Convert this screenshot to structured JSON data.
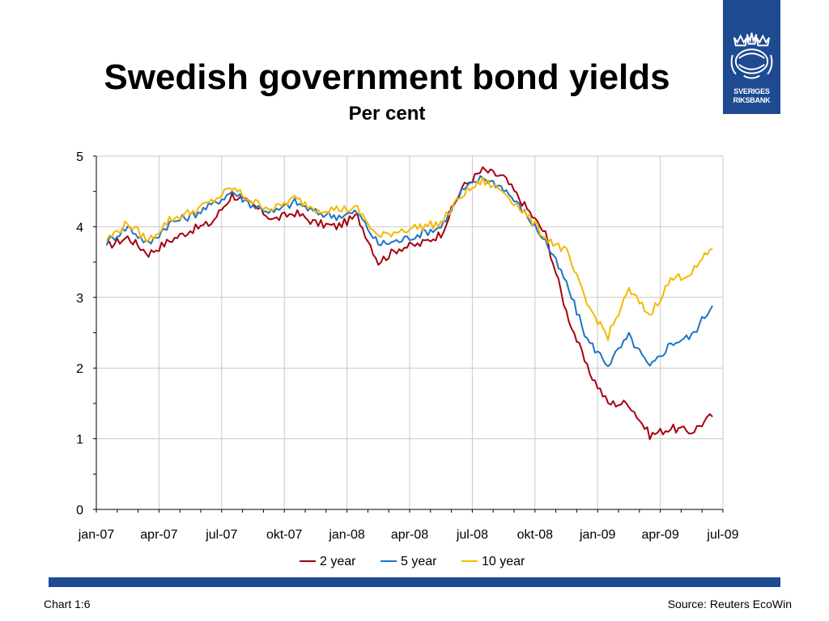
{
  "header": {
    "title": "Swedish government bond yields",
    "subtitle": "Per cent"
  },
  "logo": {
    "line1": "SVERIGES",
    "line2": "RIKSBANK",
    "color": "#1e4a92"
  },
  "footer": {
    "chart_number": "Chart 1:6",
    "source": "Source: Reuters EcoWin"
  },
  "chart_data": {
    "type": "line",
    "title": "Swedish government bond yields",
    "subtitle": "Per cent",
    "x_tick_labels": [
      "jan-07",
      "apr-07",
      "jul-07",
      "okt-07",
      "jan-08",
      "apr-08",
      "jul-08",
      "okt-08",
      "jan-09",
      "apr-09",
      "jul-09"
    ],
    "x": [
      "2007-01",
      "2007-02",
      "2007-03",
      "2007-04",
      "2007-05",
      "2007-06",
      "2007-07",
      "2007-08",
      "2007-09",
      "2007-10",
      "2007-11",
      "2007-12",
      "2008-01",
      "2008-02",
      "2008-03",
      "2008-04",
      "2008-05",
      "2008-06",
      "2008-07",
      "2008-08",
      "2008-09",
      "2008-10",
      "2008-11",
      "2008-12",
      "2009-01",
      "2009-02",
      "2009-03",
      "2009-04",
      "2009-05",
      "2009-06"
    ],
    "ylim": [
      0,
      5
    ],
    "y_ticks": [
      0,
      1,
      2,
      3,
      4,
      5
    ],
    "grid": true,
    "legend_position": "bottom",
    "series": [
      {
        "name": "2 year",
        "color": "#a5000f",
        "values": [
          3.72,
          3.85,
          3.62,
          3.8,
          3.95,
          4.05,
          4.45,
          4.3,
          4.1,
          4.2,
          4.05,
          4.0,
          4.15,
          3.5,
          3.7,
          3.75,
          3.9,
          4.55,
          4.8,
          4.7,
          4.3,
          3.9,
          2.8,
          2.0,
          1.5,
          1.5,
          1.05,
          1.15,
          1.1,
          1.33
        ]
      },
      {
        "name": "5 year",
        "color": "#1c74c4",
        "values": [
          3.78,
          4.0,
          3.75,
          4.05,
          4.15,
          4.3,
          4.5,
          4.3,
          4.2,
          4.35,
          4.2,
          4.15,
          4.2,
          3.75,
          3.8,
          3.9,
          4.0,
          4.5,
          4.7,
          4.55,
          4.2,
          3.8,
          3.2,
          2.4,
          2.05,
          2.45,
          2.0,
          2.35,
          2.45,
          2.9
        ]
      },
      {
        "name": "10 year",
        "color": "#f5b800",
        "values": [
          3.82,
          4.05,
          3.8,
          4.1,
          4.2,
          4.35,
          4.55,
          4.35,
          4.25,
          4.4,
          4.25,
          4.25,
          4.25,
          3.85,
          3.95,
          4.0,
          4.05,
          4.45,
          4.65,
          4.5,
          4.2,
          3.85,
          3.65,
          2.9,
          2.45,
          3.1,
          2.75,
          3.25,
          3.35,
          3.7
        ]
      }
    ]
  }
}
